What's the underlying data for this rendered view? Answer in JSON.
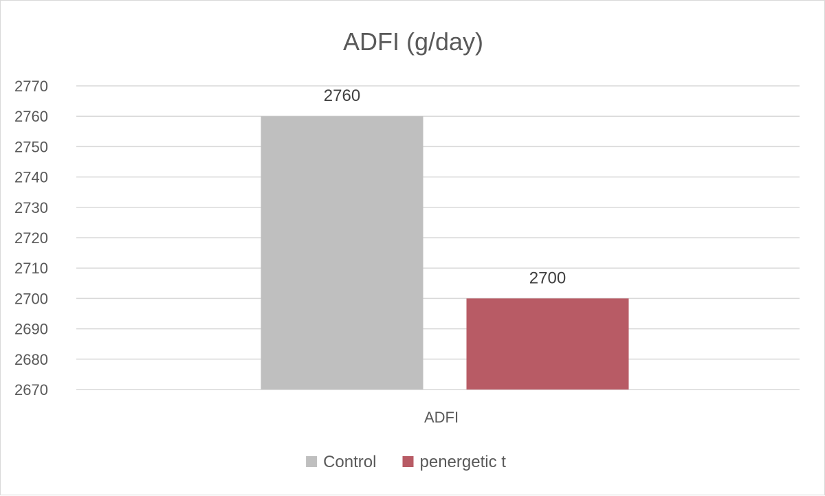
{
  "chart_data": {
    "type": "bar",
    "title": "ADFI (g/day)",
    "categories": [
      "ADFI"
    ],
    "series": [
      {
        "name": "Control",
        "values": [
          2760
        ],
        "color": "#bfbfbf"
      },
      {
        "name": "penergetic t",
        "values": [
          2700
        ],
        "color": "#b85b65"
      }
    ],
    "ylim": [
      2670,
      2770
    ],
    "yticks": [
      2670,
      2680,
      2690,
      2700,
      2710,
      2720,
      2730,
      2740,
      2750,
      2760,
      2770
    ],
    "grid": true,
    "legend": "bottom",
    "gridColor": "#d9d9d9"
  }
}
